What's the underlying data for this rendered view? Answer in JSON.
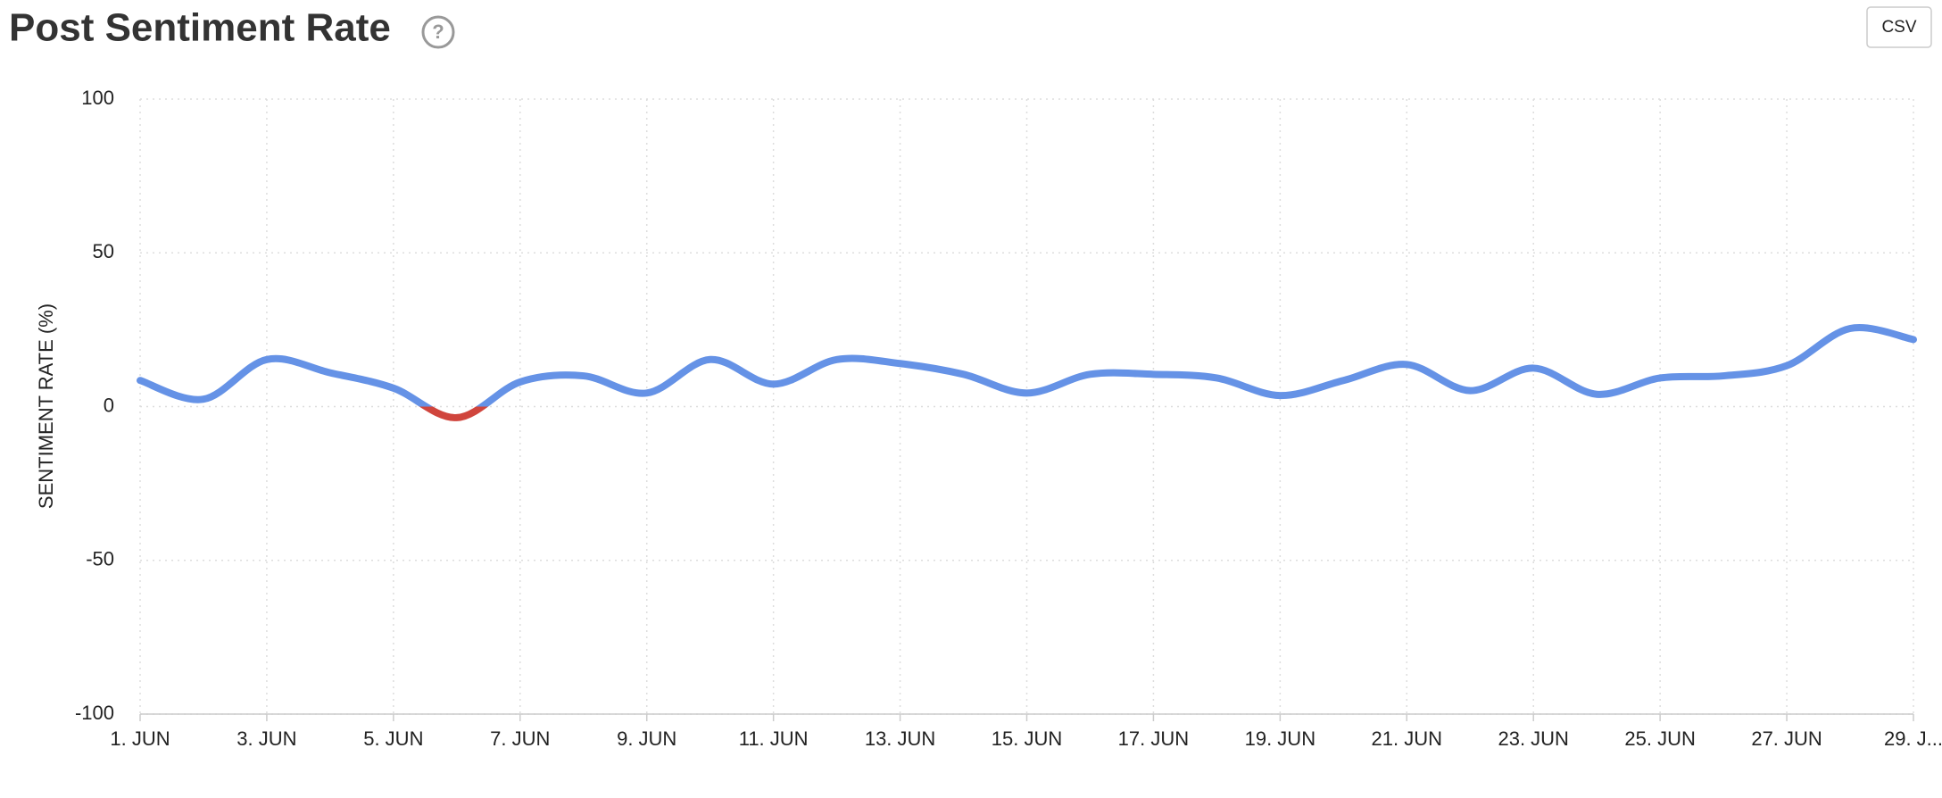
{
  "chart_data": {
    "type": "line",
    "title": "Post Sentiment Rate",
    "help_icon": "?",
    "export_button": "CSV",
    "y_label": "SENTIMENT RATE (%)",
    "categories": [
      "1. JUN",
      null,
      "3. JUN",
      null,
      "5. JUN",
      null,
      "7. JUN",
      null,
      "9. JUN",
      null,
      "11. JUN",
      null,
      "13. JUN",
      null,
      "15. JUN",
      null,
      "17. JUN",
      null,
      "19. JUN",
      null,
      "21. JUN",
      null,
      "23. JUN",
      null,
      "25. JUN",
      null,
      "27. JUN",
      null,
      "29. J..."
    ],
    "values": [
      8.5,
      2.4,
      15.3,
      11,
      6,
      -3.6,
      8,
      10,
      4.4,
      15.3,
      7.3,
      15.3,
      14,
      10.5,
      4.4,
      10.5,
      10.5,
      9.3,
      3.6,
      8.5,
      13.7,
      5.2,
      12.5,
      4,
      9.3,
      10,
      13.3,
      25.4,
      21.8
    ],
    "color": "#6592e6",
    "negative_color": "#d0453d",
    "ylim": [
      -100,
      100
    ],
    "yticks": [
      -100,
      -50,
      0,
      50,
      100
    ],
    "grid": true
  }
}
